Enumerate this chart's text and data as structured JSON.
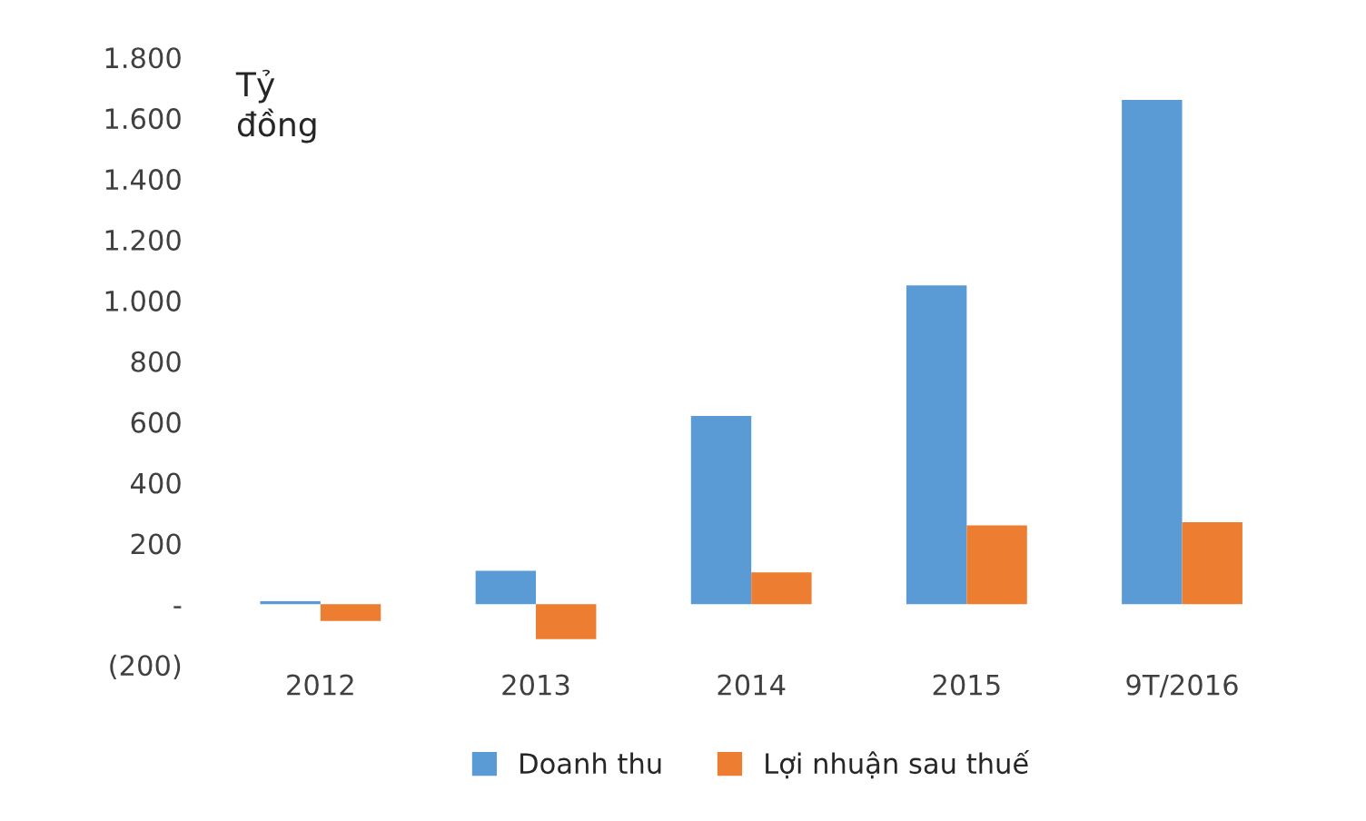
{
  "chart_data": {
    "type": "bar",
    "ylabel": "Tỷ\nđồng",
    "categories": [
      "2012",
      "2013",
      "2014",
      "2015",
      "9T/2016"
    ],
    "series": [
      {
        "name": "Doanh thu",
        "color": "#5b9bd5",
        "values": [
          10,
          110,
          620,
          1050,
          1660
        ]
      },
      {
        "name": "Lợi nhuận sau thuế",
        "color": "#ed7d31",
        "values": [
          -55,
          -115,
          105,
          260,
          270
        ]
      }
    ],
    "ylim": [
      -200,
      1800
    ],
    "yticks": [
      {
        "value": -200,
        "label": "(200)"
      },
      {
        "value": 0,
        "label": "-"
      },
      {
        "value": 200,
        "label": "200"
      },
      {
        "value": 400,
        "label": "400"
      },
      {
        "value": 600,
        "label": "600"
      },
      {
        "value": 800,
        "label": "800"
      },
      {
        "value": 1000,
        "label": "1.000"
      },
      {
        "value": 1200,
        "label": "1.200"
      },
      {
        "value": 1400,
        "label": "1.400"
      },
      {
        "value": 1600,
        "label": "1.600"
      },
      {
        "value": 1800,
        "label": "1.800"
      }
    ],
    "grid": false,
    "legend": "bottom"
  }
}
